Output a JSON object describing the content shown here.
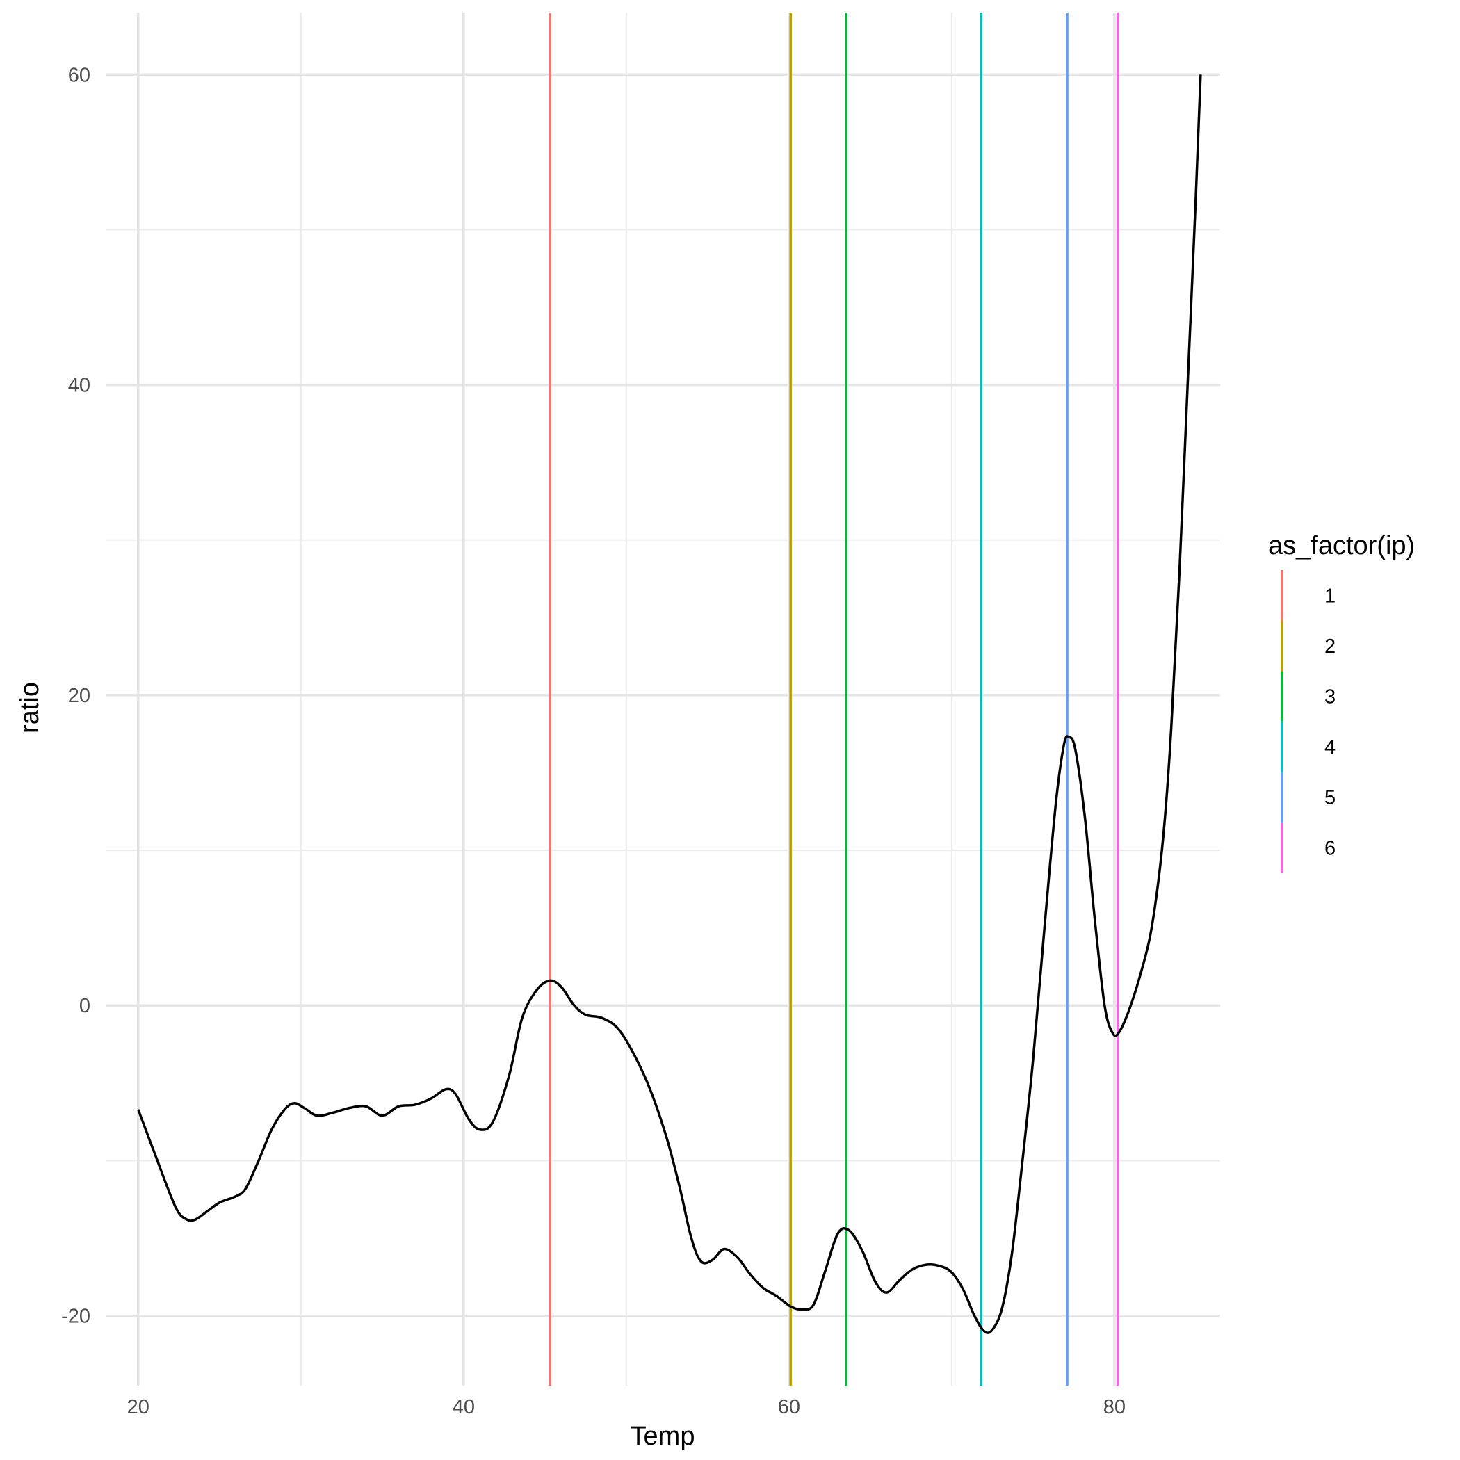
{
  "chart_data": {
    "type": "line",
    "xlabel": "Temp",
    "ylabel": "ratio",
    "xlim": [
      18,
      86.5
    ],
    "ylim": [
      -24.5,
      64
    ],
    "x_ticks": [
      20,
      40,
      60,
      80
    ],
    "x_tick_labels": [
      "20",
      "40",
      "60",
      "80"
    ],
    "y_ticks": [
      -20,
      0,
      20,
      40,
      60
    ],
    "y_tick_labels": [
      "-20",
      "0",
      "20",
      "40",
      "60"
    ],
    "grid": true,
    "legend_position": "right",
    "legend": {
      "title": "as_factor(ip)",
      "entries": [
        {
          "label": "1",
          "color": "#F8766D"
        },
        {
          "label": "2",
          "color": "#B79F00"
        },
        {
          "label": "3",
          "color": "#00BA38"
        },
        {
          "label": "4",
          "color": "#00BFC4"
        },
        {
          "label": "5",
          "color": "#619CFF"
        },
        {
          "label": "6",
          "color": "#F564E3"
        }
      ]
    },
    "vlines": [
      {
        "group": "1",
        "x": 45.3,
        "color": "#F8766D"
      },
      {
        "group": "2",
        "x": 60.1,
        "color": "#B79F00"
      },
      {
        "group": "3",
        "x": 63.5,
        "color": "#00BA38"
      },
      {
        "group": "4",
        "x": 71.8,
        "color": "#00BFC4"
      },
      {
        "group": "5",
        "x": 77.1,
        "color": "#619CFF"
      },
      {
        "group": "6",
        "x": 80.2,
        "color": "#F564E3"
      }
    ],
    "series": [
      {
        "color": "#000000",
        "points": [
          [
            20.0,
            -6.7
          ],
          [
            21.0,
            -9.5
          ],
          [
            22.3,
            -13.0
          ],
          [
            23.0,
            -13.8
          ],
          [
            23.5,
            -13.8
          ],
          [
            24.2,
            -13.3
          ],
          [
            25.0,
            -12.7
          ],
          [
            26.0,
            -12.3
          ],
          [
            26.6,
            -11.8
          ],
          [
            27.4,
            -10.0
          ],
          [
            28.2,
            -8.0
          ],
          [
            29.0,
            -6.7
          ],
          [
            29.6,
            -6.3
          ],
          [
            30.2,
            -6.6
          ],
          [
            31.0,
            -7.1
          ],
          [
            32.0,
            -6.9
          ],
          [
            33.0,
            -6.6
          ],
          [
            34.0,
            -6.5
          ],
          [
            35.0,
            -7.1
          ],
          [
            36.0,
            -6.5
          ],
          [
            37.0,
            -6.4
          ],
          [
            38.0,
            -6.0
          ],
          [
            38.9,
            -5.4
          ],
          [
            39.5,
            -5.7
          ],
          [
            40.3,
            -7.3
          ],
          [
            41.0,
            -8.0
          ],
          [
            41.8,
            -7.5
          ],
          [
            42.8,
            -4.5
          ],
          [
            43.6,
            -0.8
          ],
          [
            44.5,
            1.0
          ],
          [
            45.3,
            1.6
          ],
          [
            46.0,
            1.2
          ],
          [
            46.8,
            0.0
          ],
          [
            47.5,
            -0.6
          ],
          [
            48.5,
            -0.8
          ],
          [
            49.5,
            -1.5
          ],
          [
            50.5,
            -3.2
          ],
          [
            51.5,
            -5.5
          ],
          [
            52.5,
            -8.6
          ],
          [
            53.3,
            -11.8
          ],
          [
            54.0,
            -15.0
          ],
          [
            54.6,
            -16.5
          ],
          [
            55.3,
            -16.4
          ],
          [
            56.0,
            -15.7
          ],
          [
            56.8,
            -16.2
          ],
          [
            57.6,
            -17.3
          ],
          [
            58.4,
            -18.2
          ],
          [
            59.2,
            -18.7
          ],
          [
            60.1,
            -19.4
          ],
          [
            60.8,
            -19.6
          ],
          [
            61.5,
            -19.3
          ],
          [
            62.2,
            -17.2
          ],
          [
            63.0,
            -14.7
          ],
          [
            63.7,
            -14.5
          ],
          [
            64.5,
            -15.8
          ],
          [
            65.3,
            -17.8
          ],
          [
            66.0,
            -18.5
          ],
          [
            66.8,
            -17.7
          ],
          [
            67.6,
            -17.0
          ],
          [
            68.5,
            -16.7
          ],
          [
            69.3,
            -16.8
          ],
          [
            70.0,
            -17.2
          ],
          [
            70.7,
            -18.3
          ],
          [
            71.4,
            -20.0
          ],
          [
            72.0,
            -21.0
          ],
          [
            72.5,
            -20.9
          ],
          [
            73.1,
            -19.5
          ],
          [
            73.7,
            -16.0
          ],
          [
            74.3,
            -10.5
          ],
          [
            75.0,
            -3.5
          ],
          [
            75.7,
            5.0
          ],
          [
            76.4,
            13.0
          ],
          [
            76.9,
            16.8
          ],
          [
            77.2,
            17.3
          ],
          [
            77.6,
            16.5
          ],
          [
            78.2,
            12.0
          ],
          [
            78.8,
            5.5
          ],
          [
            79.4,
            0.0
          ],
          [
            79.9,
            -1.8
          ],
          [
            80.3,
            -1.7
          ],
          [
            80.9,
            -0.3
          ],
          [
            81.6,
            2.0
          ],
          [
            82.2,
            4.5
          ],
          [
            82.7,
            8.0
          ],
          [
            83.1,
            12.0
          ],
          [
            83.5,
            18.0
          ],
          [
            84.0,
            28.0
          ],
          [
            84.5,
            40.0
          ],
          [
            85.0,
            52.0
          ],
          [
            85.3,
            60.0
          ]
        ]
      }
    ]
  }
}
